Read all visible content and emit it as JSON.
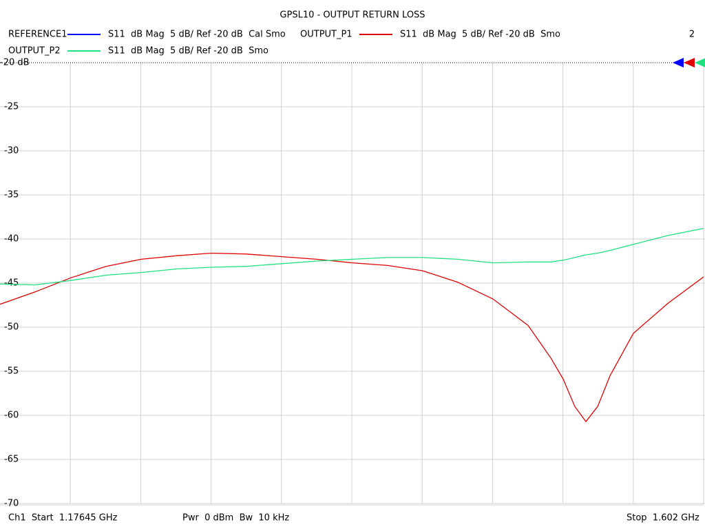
{
  "chart_data": {
    "type": "line",
    "title": "GPSL10 - OUTPUT RETURN LOSS",
    "x": [
      1.17645,
      1.1977,
      1.2193,
      1.2406,
      1.2618,
      1.2831,
      1.3043,
      1.3255,
      1.3468,
      1.368,
      1.3896,
      1.4109,
      1.4321,
      1.4533,
      1.4746,
      1.4958,
      1.5096,
      1.5171,
      1.5241,
      1.5308,
      1.5379,
      1.5454,
      1.5595,
      1.5804,
      1.602
    ],
    "xlim": [
      1.17645,
      1.602
    ],
    "x_divisions": 10,
    "ylim": [
      -70,
      -20
    ],
    "yticks": [
      {
        "value": -20,
        "label": "-20 dB"
      },
      -25,
      -30,
      -35,
      -40,
      -45,
      -50,
      -55,
      -60,
      -65,
      -70
    ],
    "grid": true,
    "series": [
      {
        "name": "REFERENCE1",
        "color": "#0000ff",
        "format": "S11  dB Mag  5 dB/ Ref -20 dB  Cal Smo",
        "values": [
          null,
          null,
          null,
          null,
          null,
          null,
          null,
          null,
          null,
          null,
          null,
          null,
          null,
          null,
          null,
          null,
          null,
          null,
          null,
          null,
          null,
          null,
          null,
          null,
          null
        ]
      },
      {
        "name": "OUTPUT_P1",
        "color": "#e00000",
        "format": "S11  dB Mag  5 dB/ Ref -20 dB  Smo",
        "values": [
          -47.4,
          -46.0,
          -44.4,
          -43.1,
          -42.3,
          -41.9,
          -41.6,
          -41.7,
          -42.0,
          -42.3,
          -42.7,
          -43.0,
          -43.6,
          -44.9,
          -46.8,
          -49.8,
          -53.5,
          -55.9,
          -59.0,
          -60.7,
          -59.0,
          -55.5,
          -50.7,
          -47.3,
          -44.3
        ]
      },
      {
        "name": "OUTPUT_P2",
        "color": "#20e080",
        "format": "S11  dB Mag  5 dB/ Ref -20 dB  Smo",
        "values": [
          -45.1,
          -45.2,
          -44.7,
          -44.1,
          -43.8,
          -43.4,
          -43.2,
          -43.1,
          -42.8,
          -42.5,
          -42.3,
          -42.1,
          -42.1,
          -42.3,
          -42.7,
          -42.6,
          -42.6,
          -42.4,
          -42.1,
          -41.8,
          -41.6,
          -41.3,
          -40.6,
          -39.6,
          -38.8
        ]
      }
    ],
    "channel_number": "2",
    "footer": {
      "start": "Ch1  Start  1.17645 GHz",
      "power": "Pwr  0 dBm  Bw  10 kHz",
      "stop": "Stop  1.602 GHz"
    }
  }
}
